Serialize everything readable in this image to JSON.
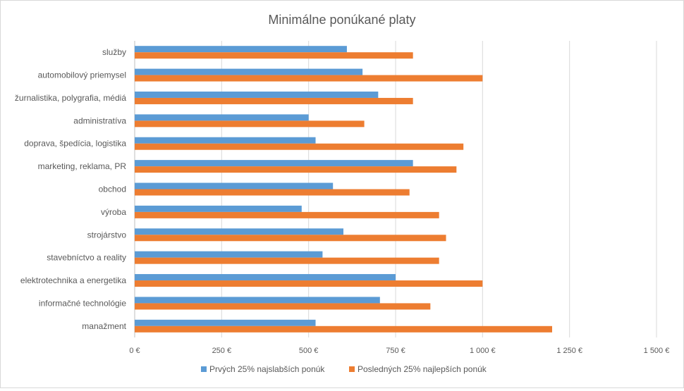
{
  "chart_data": {
    "type": "bar",
    "orientation": "horizontal",
    "title": "Minimálne ponúkané platy",
    "categories": [
      "služby",
      "automobilový priemysel",
      "žurnalistika, polygrafia, médiá",
      "administratíva",
      "doprava, špedícia, logistika",
      "marketing, reklama, PR",
      "obchod",
      "výroba",
      "strojárstvo",
      "stavebníctvo a reality",
      "elektrotechnika a energetika",
      "informačné technológie",
      "manažment"
    ],
    "series": [
      {
        "name": "Prvých 25% najslabších ponúk",
        "color": "#5b9bd5",
        "values": [
          610,
          655,
          700,
          500,
          520,
          800,
          570,
          480,
          600,
          540,
          750,
          705,
          520
        ]
      },
      {
        "name": "Posledných 25% najlepších ponúk",
        "color": "#ed7d31",
        "values": [
          800,
          1000,
          800,
          660,
          945,
          925,
          790,
          875,
          895,
          875,
          1000,
          850,
          1200
        ]
      }
    ],
    "xlim": [
      0,
      1500
    ],
    "xticks": [
      0,
      250,
      500,
      750,
      1000,
      1250,
      1500
    ],
    "xtick_labels": [
      "0 €",
      "250 €",
      "500 €",
      "750 €",
      "1 000 €",
      "1 250 €",
      "1 500 €"
    ],
    "grid": true,
    "legend_position": "bottom"
  }
}
